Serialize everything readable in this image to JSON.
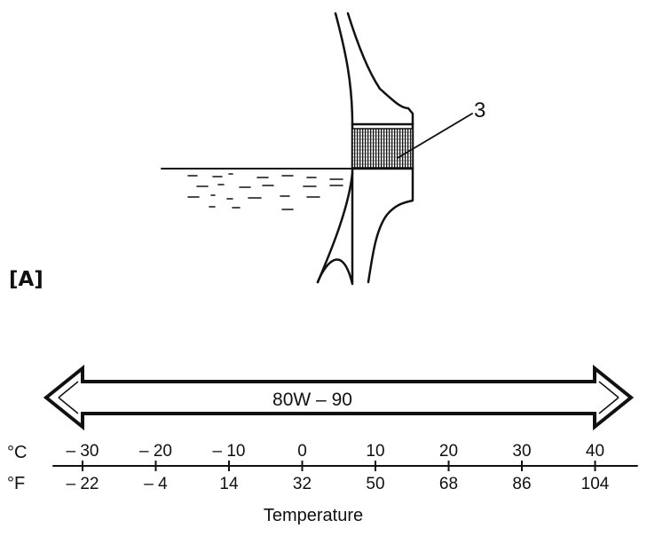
{
  "figure": {
    "panel_label": "[A]",
    "callout_number": "3"
  },
  "viscosity_band": {
    "grade_label": "80W – 90"
  },
  "scale": {
    "celsius_unit": "°C",
    "fahrenheit_unit": "°F",
    "celsius_ticks": [
      "– 30",
      "– 20",
      "– 10",
      "0",
      "10",
      "20",
      "30",
      "40"
    ],
    "fahrenheit_ticks": [
      "– 22",
      "– 4",
      "14",
      "32",
      "50",
      "68",
      "86",
      "104"
    ],
    "axis_title": "Temperature"
  }
}
